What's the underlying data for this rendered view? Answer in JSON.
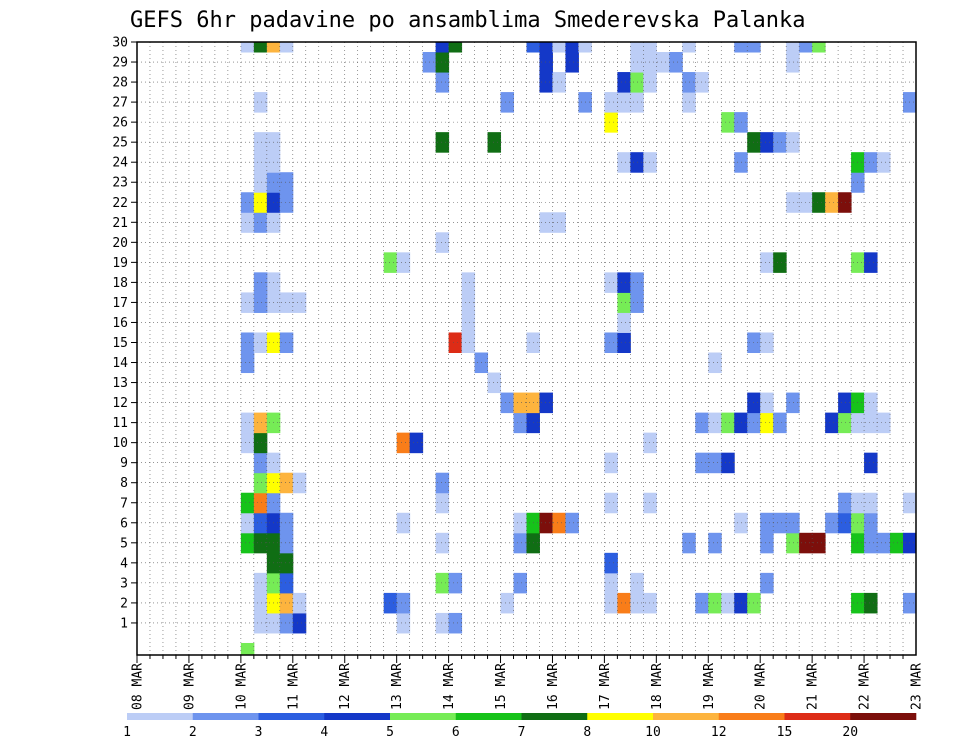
{
  "chart_data": {
    "type": "heatmap",
    "title": "GEFS 6hr padavine po ansamblima Smederevska Palanka",
    "x_tick_labels": [
      "08 MAR",
      "09 MAR",
      "10 MAR",
      "11 MAR",
      "12 MAR",
      "13 MAR",
      "14 MAR",
      "15 MAR",
      "16 MAR",
      "17 MAR",
      "18 MAR",
      "19 MAR",
      "20 MAR",
      "21 MAR",
      "22 MAR",
      "23 MAR"
    ],
    "y_tick_labels": [
      "1",
      "2",
      "3",
      "4",
      "5",
      "6",
      "7",
      "8",
      "9",
      "10",
      "11",
      "12",
      "13",
      "14",
      "15",
      "16",
      "17",
      "18",
      "19",
      "20",
      "21",
      "22",
      "23",
      "24",
      "25",
      "26",
      "27",
      "28",
      "29",
      "30"
    ],
    "x_range_steps": [
      0,
      60
    ],
    "y_range": [
      0,
      30
    ],
    "grid": true,
    "colorbar_labels": [
      "1",
      "2",
      "3",
      "4",
      "5",
      "6",
      "7",
      "8",
      "10",
      "12",
      "15",
      "20"
    ],
    "colors": [
      "#bccdf6",
      "#6e94ee",
      "#2c5ee0",
      "#1438c8",
      "#76ec56",
      "#16c31a",
      "#106e14",
      "#ffff00",
      "#fdb43e",
      "#f97d19",
      "#dd2c16",
      "#7c0f0b"
    ],
    "cells": [
      [
        8,
        0,
        4
      ],
      [
        8,
        14,
        1
      ],
      [
        8,
        15,
        1
      ],
      [
        9,
        17,
        0
      ],
      [
        9,
        18,
        0
      ],
      [
        10,
        17,
        0
      ],
      [
        10,
        18,
        0
      ],
      [
        11,
        17,
        0
      ],
      [
        12,
        17,
        0
      ],
      [
        11,
        2,
        7
      ],
      [
        9,
        1,
        0
      ],
      [
        10,
        1,
        0
      ],
      [
        11,
        1,
        1
      ],
      [
        12,
        1,
        3
      ],
      [
        20,
        1,
        0
      ],
      [
        23,
        1,
        0
      ],
      [
        24,
        1,
        1
      ],
      [
        9,
        2,
        0
      ],
      [
        10,
        2,
        7
      ],
      [
        11,
        2,
        8
      ],
      [
        12,
        2,
        0
      ],
      [
        19,
        2,
        2
      ],
      [
        20,
        2,
        1
      ],
      [
        28,
        2,
        0
      ],
      [
        36,
        2,
        0
      ],
      [
        37,
        2,
        9
      ],
      [
        38,
        2,
        0
      ],
      [
        39,
        2,
        0
      ],
      [
        43,
        2,
        1
      ],
      [
        44,
        2,
        4
      ],
      [
        45,
        2,
        0
      ],
      [
        46,
        2,
        3
      ],
      [
        47,
        2,
        4
      ],
      [
        55,
        2,
        5
      ],
      [
        56,
        2,
        6
      ],
      [
        59,
        2,
        1
      ],
      [
        9,
        3,
        0
      ],
      [
        10,
        3,
        4
      ],
      [
        11,
        3,
        2
      ],
      [
        23,
        3,
        4
      ],
      [
        24,
        3,
        1
      ],
      [
        29,
        3,
        1
      ],
      [
        36,
        3,
        0
      ],
      [
        38,
        3,
        0
      ],
      [
        48,
        3,
        1
      ],
      [
        10,
        4,
        6
      ],
      [
        11,
        4,
        6
      ],
      [
        36,
        4,
        2
      ],
      [
        8,
        5,
        5
      ],
      [
        9,
        5,
        6
      ],
      [
        10,
        5,
        6
      ],
      [
        11,
        5,
        1
      ],
      [
        23,
        5,
        0
      ],
      [
        29,
        5,
        1
      ],
      [
        30,
        5,
        6
      ],
      [
        42,
        5,
        1
      ],
      [
        44,
        5,
        1
      ],
      [
        48,
        5,
        1
      ],
      [
        50,
        5,
        4
      ],
      [
        51,
        5,
        11
      ],
      [
        52,
        5,
        11
      ],
      [
        55,
        5,
        5
      ],
      [
        56,
        5,
        1
      ],
      [
        57,
        5,
        1
      ],
      [
        58,
        5,
        5
      ],
      [
        59,
        5,
        3
      ],
      [
        8,
        6,
        0
      ],
      [
        9,
        6,
        2
      ],
      [
        10,
        6,
        3
      ],
      [
        11,
        6,
        1
      ],
      [
        20,
        6,
        0
      ],
      [
        29,
        6,
        0
      ],
      [
        30,
        6,
        5
      ],
      [
        31,
        6,
        11
      ],
      [
        32,
        6,
        9
      ],
      [
        33,
        6,
        1
      ],
      [
        46,
        6,
        0
      ],
      [
        48,
        6,
        1
      ],
      [
        49,
        6,
        1
      ],
      [
        50,
        6,
        1
      ],
      [
        53,
        6,
        1
      ],
      [
        54,
        6,
        2
      ],
      [
        55,
        6,
        4
      ],
      [
        56,
        6,
        1
      ],
      [
        8,
        7,
        5
      ],
      [
        9,
        7,
        9
      ],
      [
        10,
        7,
        1
      ],
      [
        23,
        7,
        0
      ],
      [
        36,
        7,
        0
      ],
      [
        39,
        7,
        0
      ],
      [
        54,
        7,
        1
      ],
      [
        55,
        7,
        0
      ],
      [
        56,
        7,
        0
      ],
      [
        59,
        7,
        0
      ],
      [
        9,
        8,
        4
      ],
      [
        10,
        8,
        7
      ],
      [
        11,
        8,
        8
      ],
      [
        12,
        8,
        0
      ],
      [
        23,
        8,
        1
      ],
      [
        9,
        9,
        1
      ],
      [
        10,
        9,
        0
      ],
      [
        36,
        9,
        0
      ],
      [
        43,
        9,
        1
      ],
      [
        44,
        9,
        1
      ],
      [
        45,
        9,
        3
      ],
      [
        56,
        9,
        3
      ],
      [
        8,
        10,
        0
      ],
      [
        9,
        10,
        6
      ],
      [
        20,
        10,
        9
      ],
      [
        21,
        10,
        3
      ],
      [
        39,
        10,
        0
      ],
      [
        8,
        11,
        0
      ],
      [
        9,
        11,
        8
      ],
      [
        10,
        11,
        4
      ],
      [
        29,
        11,
        1
      ],
      [
        30,
        11,
        3
      ],
      [
        43,
        11,
        1
      ],
      [
        44,
        11,
        0
      ],
      [
        45,
        11,
        4
      ],
      [
        46,
        11,
        3
      ],
      [
        47,
        11,
        1
      ],
      [
        48,
        11,
        7
      ],
      [
        49,
        11,
        1
      ],
      [
        53,
        11,
        3
      ],
      [
        54,
        11,
        4
      ],
      [
        55,
        11,
        0
      ],
      [
        56,
        11,
        0
      ],
      [
        57,
        11,
        0
      ],
      [
        28,
        12,
        1
      ],
      [
        29,
        12,
        8
      ],
      [
        30,
        12,
        8
      ],
      [
        31,
        12,
        3
      ],
      [
        47,
        12,
        3
      ],
      [
        48,
        12,
        0
      ],
      [
        50,
        12,
        1
      ],
      [
        54,
        12,
        3
      ],
      [
        55,
        12,
        5
      ],
      [
        56,
        12,
        0
      ],
      [
        27,
        13,
        0
      ],
      [
        26,
        14,
        1
      ],
      [
        44,
        14,
        0
      ],
      [
        9,
        15,
        0
      ],
      [
        10,
        15,
        7
      ],
      [
        11,
        15,
        1
      ],
      [
        24,
        15,
        10
      ],
      [
        25,
        15,
        0
      ],
      [
        30,
        15,
        0
      ],
      [
        36,
        15,
        1
      ],
      [
        37,
        15,
        3
      ],
      [
        47,
        15,
        1
      ],
      [
        48,
        15,
        0
      ],
      [
        25,
        16,
        0
      ],
      [
        37,
        16,
        0
      ],
      [
        8,
        17,
        0
      ],
      [
        9,
        17,
        1
      ],
      [
        25,
        17,
        0
      ],
      [
        37,
        17,
        4
      ],
      [
        38,
        17,
        1
      ],
      [
        9,
        18,
        1
      ],
      [
        25,
        18,
        0
      ],
      [
        36,
        18,
        0
      ],
      [
        37,
        18,
        3
      ],
      [
        38,
        18,
        1
      ],
      [
        19,
        19,
        4
      ],
      [
        20,
        19,
        0
      ],
      [
        48,
        19,
        0
      ],
      [
        49,
        19,
        6
      ],
      [
        55,
        19,
        4
      ],
      [
        56,
        19,
        3
      ],
      [
        23,
        20,
        0
      ],
      [
        8,
        21,
        0
      ],
      [
        9,
        21,
        1
      ],
      [
        10,
        21,
        0
      ],
      [
        31,
        21,
        0
      ],
      [
        32,
        21,
        0
      ],
      [
        8,
        22,
        1
      ],
      [
        9,
        22,
        7
      ],
      [
        10,
        22,
        3
      ],
      [
        11,
        22,
        1
      ],
      [
        50,
        22,
        0
      ],
      [
        51,
        22,
        0
      ],
      [
        52,
        22,
        6
      ],
      [
        53,
        22,
        8
      ],
      [
        54,
        22,
        11
      ],
      [
        9,
        23,
        0
      ],
      [
        10,
        23,
        1
      ],
      [
        11,
        23,
        1
      ],
      [
        55,
        23,
        1
      ],
      [
        9,
        24,
        0
      ],
      [
        10,
        24,
        0
      ],
      [
        37,
        24,
        0
      ],
      [
        38,
        24,
        3
      ],
      [
        39,
        24,
        0
      ],
      [
        46,
        24,
        1
      ],
      [
        55,
        24,
        5
      ],
      [
        56,
        24,
        1
      ],
      [
        57,
        24,
        0
      ],
      [
        9,
        25,
        0
      ],
      [
        10,
        25,
        0
      ],
      [
        23,
        25,
        6
      ],
      [
        27,
        25,
        6
      ],
      [
        47,
        25,
        6
      ],
      [
        48,
        25,
        3
      ],
      [
        49,
        25,
        1
      ],
      [
        50,
        25,
        0
      ],
      [
        36,
        26,
        7
      ],
      [
        45,
        26,
        4
      ],
      [
        46,
        26,
        1
      ],
      [
        9,
        27,
        0
      ],
      [
        28,
        27,
        1
      ],
      [
        34,
        27,
        1
      ],
      [
        36,
        27,
        0
      ],
      [
        37,
        27,
        0
      ],
      [
        38,
        27,
        0
      ],
      [
        42,
        27,
        0
      ],
      [
        59,
        27,
        1
      ],
      [
        23,
        28,
        1
      ],
      [
        31,
        28,
        3
      ],
      [
        32,
        28,
        0
      ],
      [
        37,
        28,
        3
      ],
      [
        38,
        28,
        4
      ],
      [
        39,
        28,
        0
      ],
      [
        42,
        28,
        1
      ],
      [
        43,
        28,
        0
      ],
      [
        22,
        29,
        1
      ],
      [
        23,
        29,
        6
      ],
      [
        31,
        29,
        3
      ],
      [
        33,
        29,
        3
      ],
      [
        38,
        29,
        0
      ],
      [
        39,
        29,
        0
      ],
      [
        40,
        29,
        0
      ],
      [
        41,
        29,
        1
      ],
      [
        50,
        29,
        0
      ],
      [
        8,
        30,
        0
      ],
      [
        9,
        30,
        6
      ],
      [
        10,
        30,
        8
      ],
      [
        11,
        30,
        0
      ],
      [
        23,
        30,
        3
      ],
      [
        24,
        30,
        6
      ],
      [
        30,
        30,
        2
      ],
      [
        31,
        30,
        3
      ],
      [
        32,
        30,
        0
      ],
      [
        33,
        30,
        3
      ],
      [
        34,
        30,
        0
      ],
      [
        38,
        30,
        0
      ],
      [
        39,
        30,
        0
      ],
      [
        42,
        30,
        0
      ],
      [
        46,
        30,
        1
      ],
      [
        47,
        30,
        1
      ],
      [
        50,
        30,
        0
      ],
      [
        51,
        30,
        1
      ],
      [
        52,
        30,
        4
      ]
    ]
  }
}
